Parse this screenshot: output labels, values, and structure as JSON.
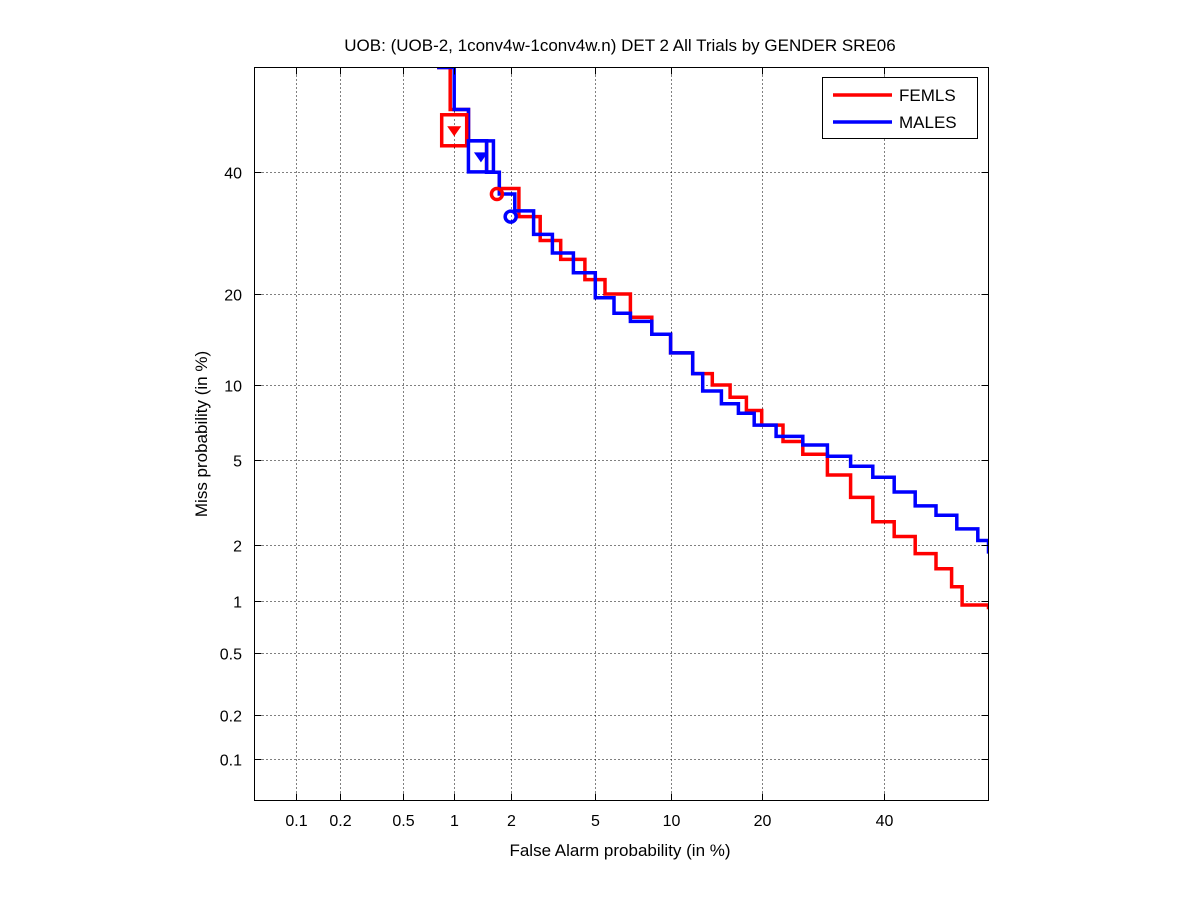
{
  "chart_data": {
    "type": "line",
    "scale": "probit (normal deviate) on both axes",
    "title": "UOB: (UOB-2, 1conv4w-1conv4w.n) DET 2 All Trials by GENDER SRE06",
    "xlabel": "False Alarm probability (in %)",
    "ylabel": "Miss probability (in %)",
    "xlim": [
      0.05,
      60
    ],
    "ylim": [
      0.05,
      60
    ],
    "x_ticks": [
      0.1,
      0.2,
      0.5,
      1,
      2,
      5,
      10,
      20,
      40
    ],
    "x_tick_labels": [
      "0.1",
      "0.2",
      "0.5",
      "1",
      "2",
      "5",
      "10",
      "20",
      "40"
    ],
    "y_ticks": [
      0.1,
      0.2,
      0.5,
      1,
      2,
      5,
      10,
      20,
      40
    ],
    "y_tick_labels": [
      "0.1",
      "0.2",
      "0.5",
      "1",
      "2",
      "5",
      "10",
      "20",
      "40"
    ],
    "grid": true,
    "legend_position": "top-right",
    "series": [
      {
        "name": "FEMLS",
        "color": "#ff0000",
        "points": [
          [
            0.8,
            60
          ],
          [
            0.95,
            52
          ],
          [
            1.2,
            46
          ],
          [
            1.5,
            40
          ],
          [
            1.75,
            37
          ],
          [
            2.2,
            32
          ],
          [
            2.8,
            28
          ],
          [
            3.5,
            25
          ],
          [
            4.5,
            22
          ],
          [
            5.5,
            20
          ],
          [
            7,
            17
          ],
          [
            8.5,
            15
          ],
          [
            10,
            13
          ],
          [
            12,
            11
          ],
          [
            14,
            10
          ],
          [
            16,
            9
          ],
          [
            18,
            8
          ],
          [
            20,
            7
          ],
          [
            23,
            6
          ],
          [
            26,
            5.3
          ],
          [
            30,
            4.3
          ],
          [
            34,
            3.4
          ],
          [
            38,
            2.6
          ],
          [
            42,
            2.2
          ],
          [
            46,
            1.8
          ],
          [
            50,
            1.5
          ],
          [
            53,
            1.2
          ],
          [
            55,
            0.95
          ],
          [
            58,
            0.95
          ],
          [
            60,
            0.9
          ]
        ],
        "min_dcf": {
          "x": 1.0,
          "y": 48
        },
        "actual_dcf": {
          "x": 1.7,
          "y": 36
        }
      },
      {
        "name": "MALES",
        "color": "#0000ff",
        "points": [
          [
            0.8,
            60
          ],
          [
            1.0,
            52
          ],
          [
            1.2,
            46
          ],
          [
            1.5,
            40
          ],
          [
            1.75,
            36
          ],
          [
            2.1,
            33
          ],
          [
            2.6,
            29
          ],
          [
            3.2,
            26
          ],
          [
            4,
            23
          ],
          [
            5,
            19.5
          ],
          [
            6,
            17.5
          ],
          [
            7,
            16.5
          ],
          [
            8.5,
            15
          ],
          [
            10,
            13
          ],
          [
            12,
            11
          ],
          [
            13,
            9.5
          ],
          [
            15,
            8.5
          ],
          [
            17,
            7.8
          ],
          [
            19,
            7
          ],
          [
            22,
            6.3
          ],
          [
            26,
            5.8
          ],
          [
            30,
            5.2
          ],
          [
            34,
            4.7
          ],
          [
            38,
            4.2
          ],
          [
            42,
            3.6
          ],
          [
            46,
            3.1
          ],
          [
            50,
            2.8
          ],
          [
            54,
            2.4
          ],
          [
            58,
            2.1
          ],
          [
            60,
            1.8
          ]
        ],
        "min_dcf": {
          "x": 1.4,
          "y": 43
        },
        "actual_dcf": {
          "x": 2.0,
          "y": 32
        }
      }
    ]
  }
}
